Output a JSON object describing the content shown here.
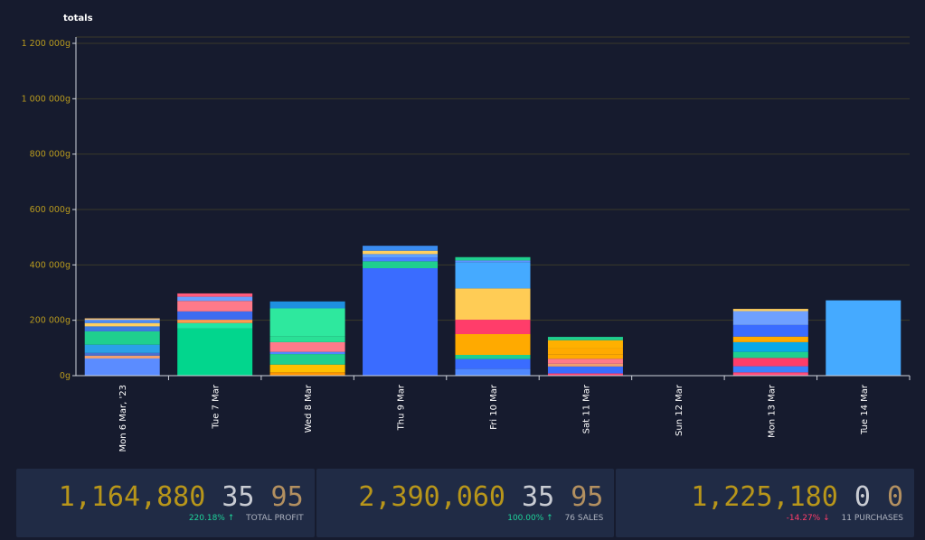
{
  "chart_data": {
    "type": "bar",
    "stacked": true,
    "title": "totals",
    "categories": [
      "Mon 6 Mar, '23",
      "Tue 7 Mar",
      "Wed 8 Mar",
      "Thu 9 Mar",
      "Fri 10 Mar",
      "Sat 11 Mar",
      "Sun 12 Mar",
      "Mon 13 Mar",
      "Tue 14 Mar"
    ],
    "y_ticks": [
      "0g",
      "200 000g",
      "400 000g",
      "600 000g",
      "800 000g",
      "1 000 000g",
      "1 200 000g"
    ],
    "ylim": [
      0,
      1200000
    ],
    "grid": true,
    "stacks": [
      [
        {
          "v": 62000,
          "c": "#5b8cff"
        },
        {
          "v": 10000,
          "c": "#f0a070"
        },
        {
          "v": 10000,
          "c": "#4a6fd0"
        },
        {
          "v": 30000,
          "c": "#2aa0e8"
        },
        {
          "v": 48000,
          "c": "#1fcf8e"
        },
        {
          "v": 18000,
          "c": "#3d7be0"
        },
        {
          "v": 12000,
          "c": "#ffd060"
        },
        {
          "v": 8000,
          "c": "#4a90ff"
        },
        {
          "v": 4000,
          "c": "#6fa0ff"
        },
        {
          "v": 5000,
          "c": "#f5c070"
        }
      ],
      [
        {
          "v": 170000,
          "c": "#02d68d"
        },
        {
          "v": 20000,
          "c": "#1ee6a6"
        },
        {
          "v": 12000,
          "c": "#ff9a50"
        },
        {
          "v": 30000,
          "c": "#3d6cf0"
        },
        {
          "v": 38000,
          "c": "#ff7a8a"
        },
        {
          "v": 15000,
          "c": "#6a9dff"
        },
        {
          "v": 12000,
          "c": "#ff5a7a"
        }
      ],
      [
        {
          "v": 12000,
          "c": "#ff9500"
        },
        {
          "v": 28000,
          "c": "#ffc000"
        },
        {
          "v": 38000,
          "c": "#1fcf8e"
        },
        {
          "v": 8000,
          "c": "#4f88ff"
        },
        {
          "v": 35000,
          "c": "#ff7a8a"
        },
        {
          "v": 22000,
          "c": "#2ae096"
        },
        {
          "v": 100000,
          "c": "#2ee89e"
        },
        {
          "v": 25000,
          "c": "#1e90e0"
        }
      ],
      [
        {
          "v": 388000,
          "c": "#3a6cff"
        },
        {
          "v": 25000,
          "c": "#1fcf8e"
        },
        {
          "v": 14000,
          "c": "#4a80ff"
        },
        {
          "v": 12000,
          "c": "#5ea0ff"
        },
        {
          "v": 12000,
          "c": "#ffd060"
        },
        {
          "v": 18000,
          "c": "#3a8cf0"
        }
      ],
      [
        {
          "v": 25000,
          "c": "#4f88ff"
        },
        {
          "v": 35000,
          "c": "#3a6cff"
        },
        {
          "v": 15000,
          "c": "#1fcf8e"
        },
        {
          "v": 75000,
          "c": "#ffaa00"
        },
        {
          "v": 52000,
          "c": "#ff3d6a"
        },
        {
          "v": 113000,
          "c": "#ffcc55"
        },
        {
          "v": 95000,
          "c": "#45aaff"
        },
        {
          "v": 6000,
          "c": "#6090ff"
        },
        {
          "v": 12000,
          "c": "#1fcf8e"
        }
      ],
      [
        {
          "v": 8000,
          "c": "#ff3d6a"
        },
        {
          "v": 25000,
          "c": "#3a6cff"
        },
        {
          "v": 10000,
          "c": "#f0a070"
        },
        {
          "v": 18000,
          "c": "#ff7a8a"
        },
        {
          "v": 15000,
          "c": "#ffaa00"
        },
        {
          "v": 22000,
          "c": "#ffaa00"
        },
        {
          "v": 30000,
          "c": "#ffb000"
        },
        {
          "v": 12000,
          "c": "#1fcf8e"
        }
      ],
      [],
      [
        {
          "v": 12000,
          "c": "#ff4a7a"
        },
        {
          "v": 22000,
          "c": "#3a80ff"
        },
        {
          "v": 30000,
          "c": "#ff3d6a"
        },
        {
          "v": 22000,
          "c": "#1fcf8e"
        },
        {
          "v": 35000,
          "c": "#0aa8e8"
        },
        {
          "v": 20000,
          "c": "#ffaa00"
        },
        {
          "v": 42000,
          "c": "#3a6cff"
        },
        {
          "v": 50000,
          "c": "#6fa0ff"
        },
        {
          "v": 8000,
          "c": "#ffd060"
        }
      ],
      [
        {
          "v": 272000,
          "c": "#45aaff"
        }
      ]
    ]
  },
  "stats": [
    {
      "main": "1,164,880",
      "mid": "35",
      "end": "95",
      "pct": "220.18%",
      "arrow": "↑",
      "label": "TOTAL PROFIT",
      "trend": "up"
    },
    {
      "main": "2,390,060",
      "mid": "35",
      "end": "95",
      "pct": "100.00%",
      "arrow": "↑",
      "label": "76 SALES",
      "trend": "up"
    },
    {
      "main": "1,225,180",
      "mid": "0",
      "end": "0",
      "pct": "-14.27%",
      "arrow": "↓",
      "label": "11 PURCHASES",
      "trend": "down"
    }
  ],
  "colors": {
    "axis_label": "#b89a1e",
    "grid": "#3a3a2a",
    "axis": "#cfd3dc",
    "background": "#161b2e"
  }
}
